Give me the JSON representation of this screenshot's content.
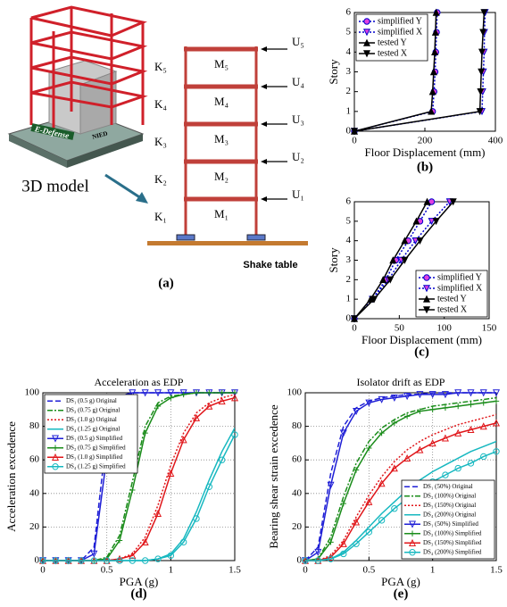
{
  "figure_a": {
    "model_label": "3D model",
    "platform_label": "E-Defense",
    "platform_tag": "NIED",
    "springs": [
      "K₅",
      "K₄",
      "K₃",
      "K₂",
      "K₁"
    ],
    "masses": [
      "M₅",
      "M₄",
      "M₃",
      "M₂",
      "M₁"
    ],
    "displacements": [
      "U₅",
      "U₄",
      "U₃",
      "U₂",
      "U₁"
    ],
    "base_label": "Shake table",
    "panel_label": "(a)"
  },
  "chart_data": [
    {
      "type": "line",
      "panel_label": "(b)",
      "xlabel": "Floor Displacement (mm)",
      "ylabel": "Story",
      "xlim": [
        0,
        400
      ],
      "xticks": [
        0,
        200,
        400
      ],
      "ylim": [
        0,
        6
      ],
      "yticks": [
        0,
        1,
        2,
        3,
        4,
        5,
        6
      ],
      "grid": false,
      "legend": "upper left",
      "series": [
        {
          "name": "simplified Y",
          "color": "#0000cc",
          "marker_fill": "#e040e0",
          "dash": "dotted",
          "marker": "circle",
          "x": [
            0,
            222,
            226,
            229,
            231,
            233,
            235
          ],
          "values": [
            0,
            1,
            2,
            3,
            4,
            5,
            6
          ]
        },
        {
          "name": "simplified X",
          "color": "#0000cc",
          "marker_fill": "#e040e0",
          "dash": "dotted",
          "marker": "triangle-down",
          "x": [
            0,
            362,
            364,
            366,
            368,
            369,
            371
          ],
          "values": [
            0,
            1,
            2,
            3,
            4,
            5,
            6
          ]
        },
        {
          "name": "tested Y",
          "color": "#000000",
          "marker_fill": "#000000",
          "dash": "solid",
          "marker": "triangle-up",
          "x": [
            0,
            218,
            222,
            225,
            228,
            230,
            232
          ],
          "values": [
            0,
            1,
            2,
            3,
            4,
            5,
            6
          ]
        },
        {
          "name": "tested X",
          "color": "#000000",
          "marker_fill": "#000000",
          "dash": "solid",
          "marker": "triangle-down",
          "x": [
            0,
            356,
            358,
            360,
            362,
            365,
            368
          ],
          "values": [
            0,
            1,
            2,
            3,
            4,
            5,
            6
          ]
        }
      ]
    },
    {
      "type": "line",
      "panel_label": "(c)",
      "xlabel": "Floor Displacement (mm)",
      "ylabel": "Story",
      "xlim": [
        0,
        150
      ],
      "xticks": [
        0,
        50,
        100,
        150
      ],
      "ylim": [
        0,
        6
      ],
      "yticks": [
        0,
        1,
        2,
        3,
        4,
        5,
        6
      ],
      "grid": false,
      "legend": "lower right",
      "series": [
        {
          "name": "simplified Y",
          "color": "#0000cc",
          "marker_fill": "#e040e0",
          "dash": "dotted",
          "marker": "circle",
          "x": [
            0,
            20,
            35,
            46,
            60,
            73,
            86
          ],
          "values": [
            0,
            1,
            2,
            3,
            4,
            5,
            6
          ]
        },
        {
          "name": "simplified X",
          "color": "#0000cc",
          "marker_fill": "#e040e0",
          "dash": "dotted",
          "marker": "triangle-down",
          "x": [
            0,
            20,
            38,
            52,
            68,
            86,
            106
          ],
          "values": [
            0,
            1,
            2,
            3,
            4,
            5,
            6
          ]
        },
        {
          "name": "tested Y",
          "color": "#000000",
          "marker_fill": "#000000",
          "dash": "solid",
          "marker": "triangle-up",
          "x": [
            0,
            18,
            32,
            43,
            56,
            69,
            81
          ],
          "values": [
            0,
            1,
            2,
            3,
            4,
            5,
            6
          ]
        },
        {
          "name": "tested X",
          "color": "#000000",
          "marker_fill": "#000000",
          "dash": "solid",
          "marker": "triangle-down",
          "x": [
            0,
            22,
            40,
            56,
            73,
            91,
            110
          ],
          "values": [
            0,
            1,
            2,
            3,
            4,
            5,
            6
          ]
        }
      ]
    },
    {
      "type": "line",
      "panel_label": "(d)",
      "title": "Acceleration as EDP",
      "xlabel": "PGA (g)",
      "ylabel": "Acceleration excedence",
      "xlim": [
        0,
        1.5
      ],
      "xticks": [
        0,
        0.5,
        1,
        1.5
      ],
      "ylim": [
        0,
        100
      ],
      "yticks": [
        0,
        20,
        40,
        60,
        80,
        100
      ],
      "grid": true,
      "legend": "upper left",
      "x": [
        0,
        0.1,
        0.2,
        0.3,
        0.4,
        0.5,
        0.6,
        0.7,
        0.8,
        0.9,
        1,
        1.1,
        1.2,
        1.3,
        1.4,
        1.5
      ],
      "series": [
        {
          "name": "DS₁ (0.5 g) Original",
          "color": "#1f1fd6",
          "dash": "dashed",
          "marker": "none",
          "values": [
            0,
            0,
            0,
            0,
            8,
            75,
            98,
            100,
            100,
            100,
            100,
            100,
            100,
            100,
            100,
            100
          ]
        },
        {
          "name": "DS₂ (0.75 g) Original",
          "color": "#1a8c1a",
          "dash": "dashdot",
          "marker": "none",
          "values": [
            0,
            0,
            0,
            0,
            0,
            2,
            15,
            47,
            80,
            94,
            98,
            99,
            100,
            100,
            100,
            100
          ]
        },
        {
          "name": "DS₃ (1.0 g) Original",
          "color": "#e0161a",
          "dash": "dotted",
          "marker": "none",
          "values": [
            0,
            0,
            0,
            0,
            0,
            0,
            1,
            4,
            14,
            33,
            57,
            76,
            88,
            94,
            97,
            99
          ]
        },
        {
          "name": "DS₄ (1.25 g) Original",
          "color": "#17b8c0",
          "dash": "solid",
          "marker": "none",
          "values": [
            0,
            0,
            0,
            0,
            0,
            0,
            0,
            0,
            0,
            1,
            4,
            13,
            29,
            48,
            65,
            79
          ]
        },
        {
          "name": "DS₁ (0.5 g) Simplified",
          "color": "#1f1fd6",
          "dash": "solid",
          "marker": "triangle-down",
          "values": [
            0,
            0,
            0,
            0,
            4,
            62,
            96,
            100,
            100,
            100,
            100,
            100,
            100,
            100,
            100,
            100
          ]
        },
        {
          "name": "DS₂ (0.75 g) Simplified",
          "color": "#1a8c1a",
          "dash": "solid",
          "marker": "plus",
          "values": [
            0,
            0,
            0,
            0,
            0,
            1,
            12,
            42,
            76,
            92,
            97,
            99,
            100,
            100,
            100,
            100
          ]
        },
        {
          "name": "DS₃ (1.0 g) Simplified",
          "color": "#e0161a",
          "dash": "solid",
          "marker": "triangle-up",
          "values": [
            0,
            0,
            0,
            0,
            0,
            0,
            1,
            3,
            11,
            28,
            52,
            72,
            85,
            92,
            95,
            97
          ]
        },
        {
          "name": "DS₄ (1.25 g) Simplified",
          "color": "#17b8c0",
          "dash": "solid",
          "marker": "circle",
          "values": [
            0,
            0,
            0,
            0,
            0,
            0,
            0,
            0,
            0,
            1,
            3,
            11,
            25,
            44,
            60,
            75
          ]
        }
      ]
    },
    {
      "type": "line",
      "panel_label": "(e)",
      "title": "Isolator drift as EDP",
      "xlabel": "PGA (g)",
      "ylabel": "Bearing shear strain excedence",
      "xlim": [
        0,
        1.5
      ],
      "xticks": [
        0,
        0.5,
        1,
        1.5
      ],
      "ylim": [
        0,
        100
      ],
      "yticks": [
        0,
        20,
        40,
        60,
        80,
        100
      ],
      "grid": true,
      "legend": "lower right",
      "x": [
        0,
        0.1,
        0.2,
        0.3,
        0.4,
        0.5,
        0.6,
        0.7,
        0.8,
        0.9,
        1,
        1.1,
        1.2,
        1.3,
        1.4,
        1.5
      ],
      "series": [
        {
          "name": "DS₁ (50%) Original",
          "color": "#1f1fd6",
          "dash": "dashed",
          "marker": "none",
          "values": [
            0,
            8,
            52,
            80,
            91,
            95,
            97,
            98,
            99,
            99,
            100,
            100,
            100,
            100,
            100,
            100
          ]
        },
        {
          "name": "DS₂ (100%) Original",
          "color": "#1a8c1a",
          "dash": "dashdot",
          "marker": "none",
          "values": [
            0,
            1,
            14,
            38,
            58,
            71,
            79,
            84,
            88,
            90,
            92,
            93,
            94,
            95,
            96,
            97
          ]
        },
        {
          "name": "DS₃ (150%) Original",
          "color": "#e0161a",
          "dash": "dotted",
          "marker": "none",
          "values": [
            0,
            0,
            3,
            12,
            26,
            39,
            50,
            59,
            66,
            71,
            75,
            78,
            81,
            83,
            85,
            87
          ]
        },
        {
          "name": "DS₄ (200%) Original",
          "color": "#17b8c0",
          "dash": "solid",
          "marker": "none",
          "values": [
            0,
            0,
            1,
            5,
            12,
            20,
            28,
            35,
            42,
            48,
            53,
            57,
            61,
            65,
            68,
            71
          ]
        },
        {
          "name": "DS₁ (50%) Simplified",
          "color": "#1f1fd6",
          "dash": "solid",
          "marker": "triangle-down",
          "values": [
            0,
            5,
            45,
            76,
            89,
            94,
            96,
            97,
            98,
            99,
            99,
            99,
            100,
            100,
            100,
            100
          ]
        },
        {
          "name": "DS₂ (100%) Simplified",
          "color": "#1a8c1a",
          "dash": "solid",
          "marker": "plus",
          "values": [
            0,
            1,
            11,
            34,
            54,
            67,
            76,
            82,
            86,
            89,
            90,
            91,
            92,
            93,
            94,
            95
          ]
        },
        {
          "name": "DS₃ (150%) Simplified",
          "color": "#e0161a",
          "dash": "solid",
          "marker": "triangle-up",
          "values": [
            0,
            0,
            2,
            10,
            23,
            35,
            46,
            55,
            61,
            66,
            70,
            73,
            76,
            78,
            80,
            82
          ]
        },
        {
          "name": "DS₄ (200%) Simplified",
          "color": "#17b8c0",
          "dash": "solid",
          "marker": "circle",
          "values": [
            0,
            0,
            1,
            4,
            10,
            17,
            24,
            31,
            37,
            42,
            47,
            51,
            55,
            58,
            62,
            65
          ]
        }
      ]
    }
  ]
}
